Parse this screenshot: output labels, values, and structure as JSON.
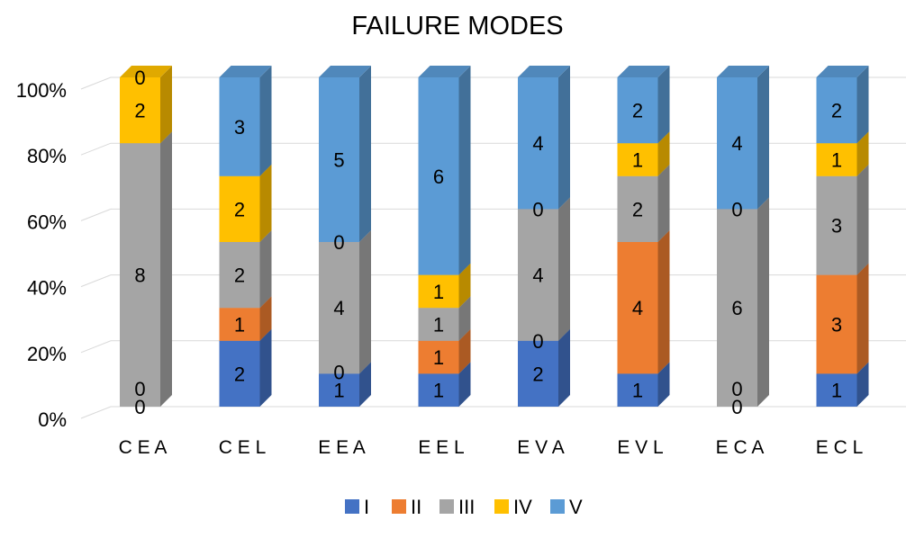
{
  "chart_data": {
    "type": "bar",
    "stacked": true,
    "percent_stacked": true,
    "three_d": true,
    "title": "FAILURE MODES",
    "categories": [
      "C E A",
      "C E L",
      "E E A",
      "E E L",
      "E V A",
      "E V L",
      "E C A",
      "E C L"
    ],
    "series": [
      {
        "name": "I",
        "color": "#4472C4",
        "values": [
          0,
          2,
          1,
          1,
          2,
          1,
          0,
          1
        ]
      },
      {
        "name": "II",
        "color": "#ED7D31",
        "values": [
          0,
          1,
          0,
          1,
          0,
          4,
          0,
          3
        ]
      },
      {
        "name": "III",
        "color": "#A5A5A5",
        "values": [
          8,
          2,
          4,
          1,
          4,
          2,
          6,
          3
        ]
      },
      {
        "name": "IV",
        "color": "#FFC000",
        "values": [
          2,
          2,
          0,
          1,
          0,
          1,
          0,
          1
        ]
      },
      {
        "name": "V",
        "color": "#5B9BD5",
        "values": [
          0,
          3,
          5,
          6,
          4,
          2,
          4,
          2
        ]
      }
    ],
    "y_ticks": [
      "0%",
      "20%",
      "40%",
      "60%",
      "80%",
      "100%"
    ],
    "ylim": [
      0,
      100
    ],
    "xlabel": "",
    "ylabel": "",
    "grid": true,
    "legend": "bottom"
  }
}
